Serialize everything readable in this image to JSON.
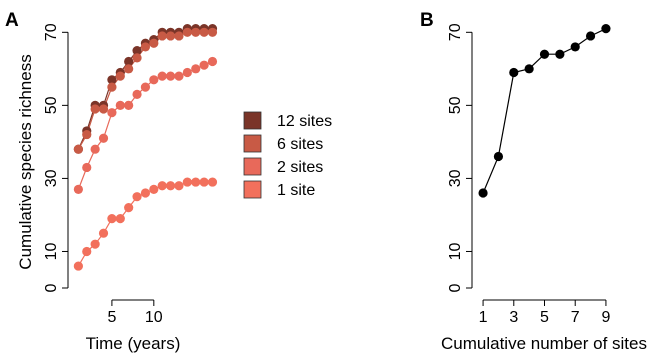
{
  "chart_data": [
    {
      "panel_label": "A",
      "type": "line",
      "ylabel": "Cumulative species richness",
      "xlabel": "Time (years)",
      "xlim": [
        0,
        17.3
      ],
      "ylim": [
        0,
        72
      ],
      "xticks": [
        5,
        10
      ],
      "yticks": [
        0,
        10,
        30,
        50,
        70
      ],
      "x": [
        1,
        2,
        3,
        4,
        5,
        6,
        7,
        8,
        9,
        10,
        11,
        12,
        13,
        14,
        15,
        16,
        17
      ],
      "legend": {
        "position": "right"
      },
      "series": [
        {
          "name": "12 sites",
          "color": "#7a3428",
          "values": [
            38,
            43,
            50,
            50,
            57,
            59,
            62,
            65,
            67,
            68,
            70,
            70,
            70,
            71,
            71,
            71,
            71
          ]
        },
        {
          "name": "6 sites",
          "color": "#c85a45",
          "values": [
            38,
            42,
            49,
            49,
            55,
            58,
            60,
            63,
            66,
            67,
            69,
            69,
            69,
            70,
            70,
            70,
            70
          ]
        },
        {
          "name": "2 sites",
          "color": "#e8695a",
          "values": [
            27,
            33,
            38,
            41,
            48,
            50,
            50,
            53,
            55,
            57,
            58,
            58,
            58,
            59,
            60,
            61,
            62
          ]
        },
        {
          "name": "1 site",
          "color": "#f2705c",
          "values": [
            6,
            10,
            12,
            15,
            19,
            19,
            22,
            25,
            26,
            27,
            28,
            28,
            28,
            29,
            29,
            29,
            29
          ]
        }
      ]
    },
    {
      "panel_label": "B",
      "type": "line",
      "ylabel": "",
      "xlabel": "Cumulative number of sites",
      "xlim": [
        0.8,
        9.2
      ],
      "ylim": [
        0,
        72
      ],
      "xticks": [
        1,
        3,
        5,
        7,
        9
      ],
      "yticks": [
        0,
        10,
        30,
        50,
        70
      ],
      "series": [
        {
          "name": "",
          "color": "#000000",
          "x": [
            1,
            2,
            3,
            4,
            5,
            6,
            7,
            8,
            9
          ],
          "values": [
            26,
            36,
            59,
            60,
            64,
            64,
            66,
            69,
            71
          ]
        }
      ]
    }
  ]
}
